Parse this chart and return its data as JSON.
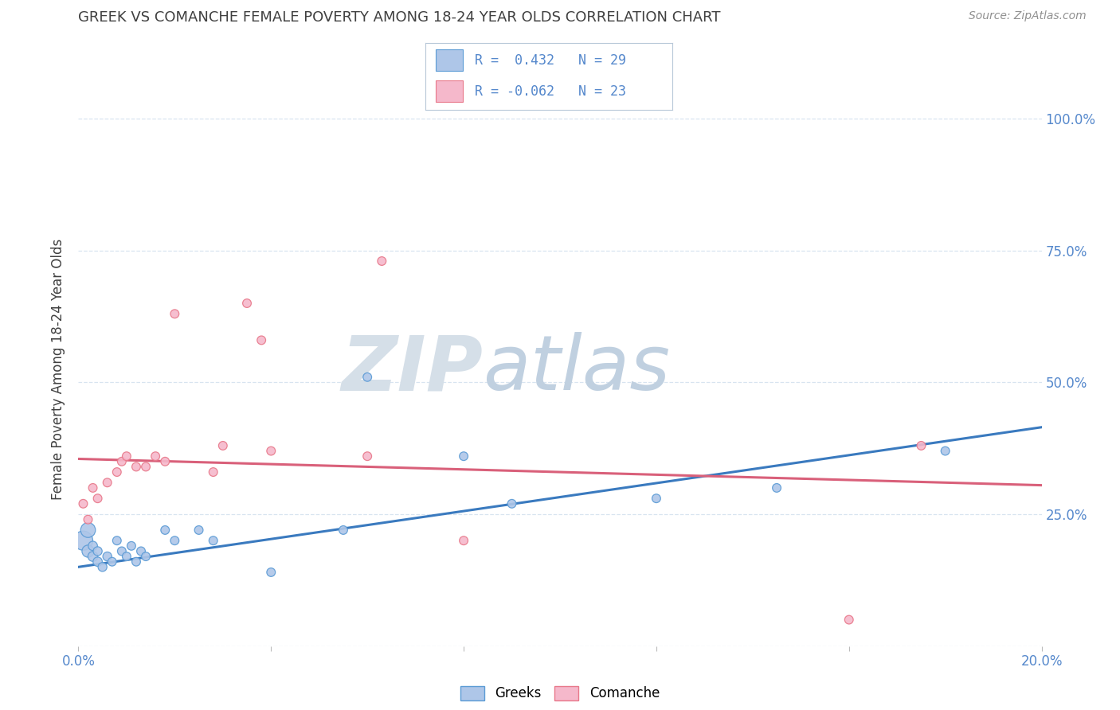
{
  "title": "GREEK VS COMANCHE FEMALE POVERTY AMONG 18-24 YEAR OLDS CORRELATION CHART",
  "source": "Source: ZipAtlas.com",
  "ylabel": "Female Poverty Among 18-24 Year Olds",
  "xlim": [
    0.0,
    0.2
  ],
  "ylim": [
    0.0,
    1.05
  ],
  "greek_color": "#aec6e8",
  "comanche_color": "#f5b8cb",
  "greek_edge_color": "#5b9bd5",
  "comanche_edge_color": "#e8788a",
  "greek_line_color": "#3a7abf",
  "comanche_line_color": "#d9607a",
  "title_color": "#404040",
  "axis_color": "#5588cc",
  "watermark_color": "#d0dce8",
  "grid_color": "#d8e4f0",
  "greek_x": [
    0.001,
    0.002,
    0.002,
    0.003,
    0.003,
    0.004,
    0.004,
    0.005,
    0.006,
    0.007,
    0.008,
    0.009,
    0.01,
    0.011,
    0.012,
    0.013,
    0.014,
    0.018,
    0.02,
    0.025,
    0.028,
    0.04,
    0.055,
    0.06,
    0.08,
    0.09,
    0.12,
    0.145,
    0.18
  ],
  "greek_y": [
    0.2,
    0.22,
    0.18,
    0.17,
    0.19,
    0.16,
    0.18,
    0.15,
    0.17,
    0.16,
    0.2,
    0.18,
    0.17,
    0.19,
    0.16,
    0.18,
    0.17,
    0.22,
    0.2,
    0.22,
    0.2,
    0.14,
    0.22,
    0.51,
    0.36,
    0.27,
    0.28,
    0.3,
    0.37
  ],
  "greek_sizes": [
    300,
    180,
    120,
    80,
    70,
    70,
    65,
    65,
    65,
    60,
    60,
    60,
    60,
    60,
    60,
    60,
    60,
    60,
    60,
    60,
    60,
    60,
    60,
    60,
    60,
    60,
    60,
    60,
    60
  ],
  "comanche_x": [
    0.001,
    0.002,
    0.003,
    0.004,
    0.006,
    0.008,
    0.009,
    0.01,
    0.012,
    0.014,
    0.016,
    0.018,
    0.02,
    0.028,
    0.03,
    0.035,
    0.038,
    0.04,
    0.06,
    0.063,
    0.08,
    0.16,
    0.175
  ],
  "comanche_y": [
    0.27,
    0.24,
    0.3,
    0.28,
    0.31,
    0.33,
    0.35,
    0.36,
    0.34,
    0.34,
    0.36,
    0.35,
    0.63,
    0.33,
    0.38,
    0.65,
    0.58,
    0.37,
    0.36,
    0.73,
    0.2,
    0.05,
    0.38
  ],
  "comanche_sizes": [
    60,
    60,
    60,
    60,
    60,
    60,
    60,
    60,
    60,
    60,
    60,
    60,
    60,
    60,
    60,
    60,
    60,
    60,
    60,
    60,
    60,
    60,
    60
  ],
  "greek_line_x0": 0.0,
  "greek_line_y0": 0.15,
  "greek_line_x1": 0.2,
  "greek_line_y1": 0.415,
  "comanche_line_x0": 0.0,
  "comanche_line_y0": 0.355,
  "comanche_line_x1": 0.2,
  "comanche_line_y1": 0.305
}
